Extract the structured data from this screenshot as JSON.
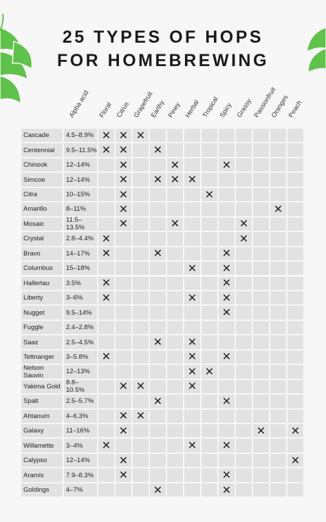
{
  "header": {
    "title_lines": [
      "25 TYPES OF HOPS",
      "FOR HOMEBREWING"
    ]
  },
  "table": {
    "columns": [
      "Alpha acid",
      "Floral",
      "Citrus",
      "Grapefruit",
      "Earthy",
      "Piney",
      "Herbal",
      "Tropical",
      "Spicy",
      "Grassy",
      "Passionfruit",
      "Oranges",
      "Peach"
    ],
    "rows": [
      {
        "name": "Cascade",
        "alpha": "4.5–8.9%",
        "cells": [
          "✕",
          "✕",
          "✕",
          null,
          null,
          null,
          null,
          null,
          null,
          null,
          null,
          null
        ]
      },
      {
        "name": "Centennial",
        "alpha": "9.5–11.5%",
        "cells": [
          "✕",
          "✕",
          null,
          "✕",
          null,
          null,
          null,
          null,
          null,
          null,
          null,
          null
        ]
      },
      {
        "name": "Chinook",
        "alpha": "12–14%",
        "cells": [
          null,
          "✕",
          null,
          null,
          "✕",
          null,
          null,
          "✕",
          null,
          null,
          null,
          null
        ]
      },
      {
        "name": "Simcoe",
        "alpha": "12–14%",
        "cells": [
          null,
          "✕",
          null,
          "✕",
          "✕",
          "✕",
          null,
          null,
          null,
          null,
          null,
          null
        ]
      },
      {
        "name": "Citra",
        "alpha": "10–15%",
        "cells": [
          null,
          "✕",
          null,
          null,
          null,
          null,
          "✕",
          null,
          null,
          null,
          null,
          null
        ]
      },
      {
        "name": "Amarillo",
        "alpha": "8–11%",
        "cells": [
          null,
          "✕",
          null,
          null,
          null,
          null,
          null,
          null,
          null,
          null,
          "✕",
          null
        ]
      },
      {
        "name": "Mosaic",
        "alpha": "11.5–13.5%",
        "cells": [
          null,
          "✕",
          null,
          null,
          "✕",
          null,
          null,
          null,
          "✕",
          null,
          null,
          null
        ]
      },
      {
        "name": "Crystal",
        "alpha": "2.8–4.4%",
        "cells": [
          "✕",
          null,
          null,
          null,
          null,
          null,
          null,
          null,
          "✕",
          null,
          null,
          null
        ]
      },
      {
        "name": "Bravo",
        "alpha": "14–17%",
        "cells": [
          "✕",
          null,
          null,
          "✕",
          null,
          null,
          null,
          "✕",
          null,
          null,
          null,
          null
        ]
      },
      {
        "name": "Columbus",
        "alpha": "15–18%",
        "cells": [
          null,
          null,
          null,
          null,
          null,
          "✕",
          null,
          "✕",
          null,
          null,
          null,
          null
        ]
      },
      {
        "name": "Hallertau",
        "alpha": "3.5%",
        "cells": [
          "✕",
          null,
          null,
          null,
          null,
          null,
          null,
          "✕",
          null,
          null,
          null,
          null
        ]
      },
      {
        "name": "Liberty",
        "alpha": "3–6%",
        "cells": [
          "✕",
          null,
          null,
          null,
          null,
          "✕",
          null,
          "✕",
          null,
          null,
          null,
          null
        ]
      },
      {
        "name": "Nugget",
        "alpha": "9.5–14%",
        "cells": [
          null,
          null,
          null,
          null,
          null,
          null,
          null,
          "✕",
          null,
          null,
          null,
          null
        ]
      },
      {
        "name": "Fuggle",
        "alpha": "2.4–2.8%",
        "cells": [
          null,
          null,
          null,
          null,
          null,
          null,
          null,
          null,
          null,
          null,
          null,
          null
        ]
      },
      {
        "name": "Saaz",
        "alpha": "2.5–4.5%",
        "cells": [
          null,
          null,
          null,
          "✕",
          null,
          "✕",
          null,
          null,
          null,
          null,
          null,
          null
        ]
      },
      {
        "name": "Tettnanger",
        "alpha": "3–5.8%",
        "cells": [
          "✕",
          null,
          null,
          null,
          null,
          "✕",
          null,
          "✕",
          null,
          null,
          null,
          null
        ]
      },
      {
        "name": "Nelson Sauvin",
        "alpha": "12–13%",
        "cells": [
          null,
          null,
          null,
          null,
          null,
          "✕",
          "✕",
          null,
          null,
          null,
          null,
          null
        ]
      },
      {
        "name": "Yakima Gold",
        "alpha": "8.8–10.5%",
        "cells": [
          null,
          "✕",
          "✕",
          null,
          null,
          "✕",
          null,
          null,
          null,
          null,
          null,
          null
        ]
      },
      {
        "name": "Spalt",
        "alpha": "2.5–5.7%",
        "cells": [
          null,
          null,
          null,
          "✕",
          null,
          null,
          null,
          "✕",
          null,
          null,
          null,
          null
        ]
      },
      {
        "name": "Ahtanum",
        "alpha": "4–6.3%",
        "cells": [
          null,
          "✕",
          "✕",
          null,
          null,
          null,
          null,
          null,
          null,
          null,
          null,
          null
        ]
      },
      {
        "name": "Galaxy",
        "alpha": "11–16%",
        "cells": [
          null,
          "✕",
          null,
          null,
          null,
          null,
          null,
          null,
          null,
          "✕",
          null,
          "✕"
        ]
      },
      {
        "name": "Willamette",
        "alpha": "3–4%",
        "cells": [
          "✕",
          null,
          null,
          null,
          null,
          "✕",
          null,
          "✕",
          null,
          null,
          null,
          null
        ]
      },
      {
        "name": "Calypso",
        "alpha": "12–14%",
        "cells": [
          null,
          "✕",
          null,
          null,
          null,
          null,
          null,
          null,
          null,
          null,
          null,
          "✕"
        ]
      },
      {
        "name": "Aramis",
        "alpha": "7.9–8.3%",
        "cells": [
          null,
          "✕",
          null,
          null,
          null,
          null,
          null,
          "✕",
          null,
          null,
          null,
          null
        ]
      },
      {
        "name": "Goldings",
        "alpha": "4–7%",
        "cells": [
          null,
          null,
          null,
          "✕",
          null,
          null,
          null,
          "✕",
          null,
          null,
          null,
          null
        ]
      }
    ]
  }
}
